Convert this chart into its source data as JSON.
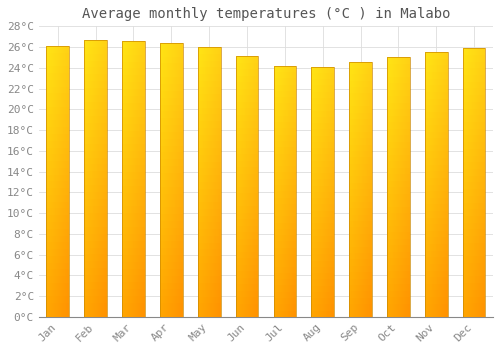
{
  "title": "Average monthly temperatures (°C ) in Malabo",
  "months": [
    "Jan",
    "Feb",
    "Mar",
    "Apr",
    "May",
    "Jun",
    "Jul",
    "Aug",
    "Sep",
    "Oct",
    "Nov",
    "Dec"
  ],
  "temperatures": [
    26.1,
    26.7,
    26.6,
    26.4,
    26.0,
    25.1,
    24.2,
    24.1,
    24.6,
    25.0,
    25.5,
    25.9
  ],
  "bar_color_top": "#FFCC44",
  "bar_color_bottom": "#F08000",
  "bar_color_edge": "#CC8800",
  "ylim": [
    0,
    28
  ],
  "ytick_step": 2,
  "background_color": "#ffffff",
  "grid_color": "#dddddd",
  "title_fontsize": 10,
  "tick_fontsize": 8,
  "title_color": "#555555",
  "tick_color": "#888888",
  "bar_width": 0.6
}
